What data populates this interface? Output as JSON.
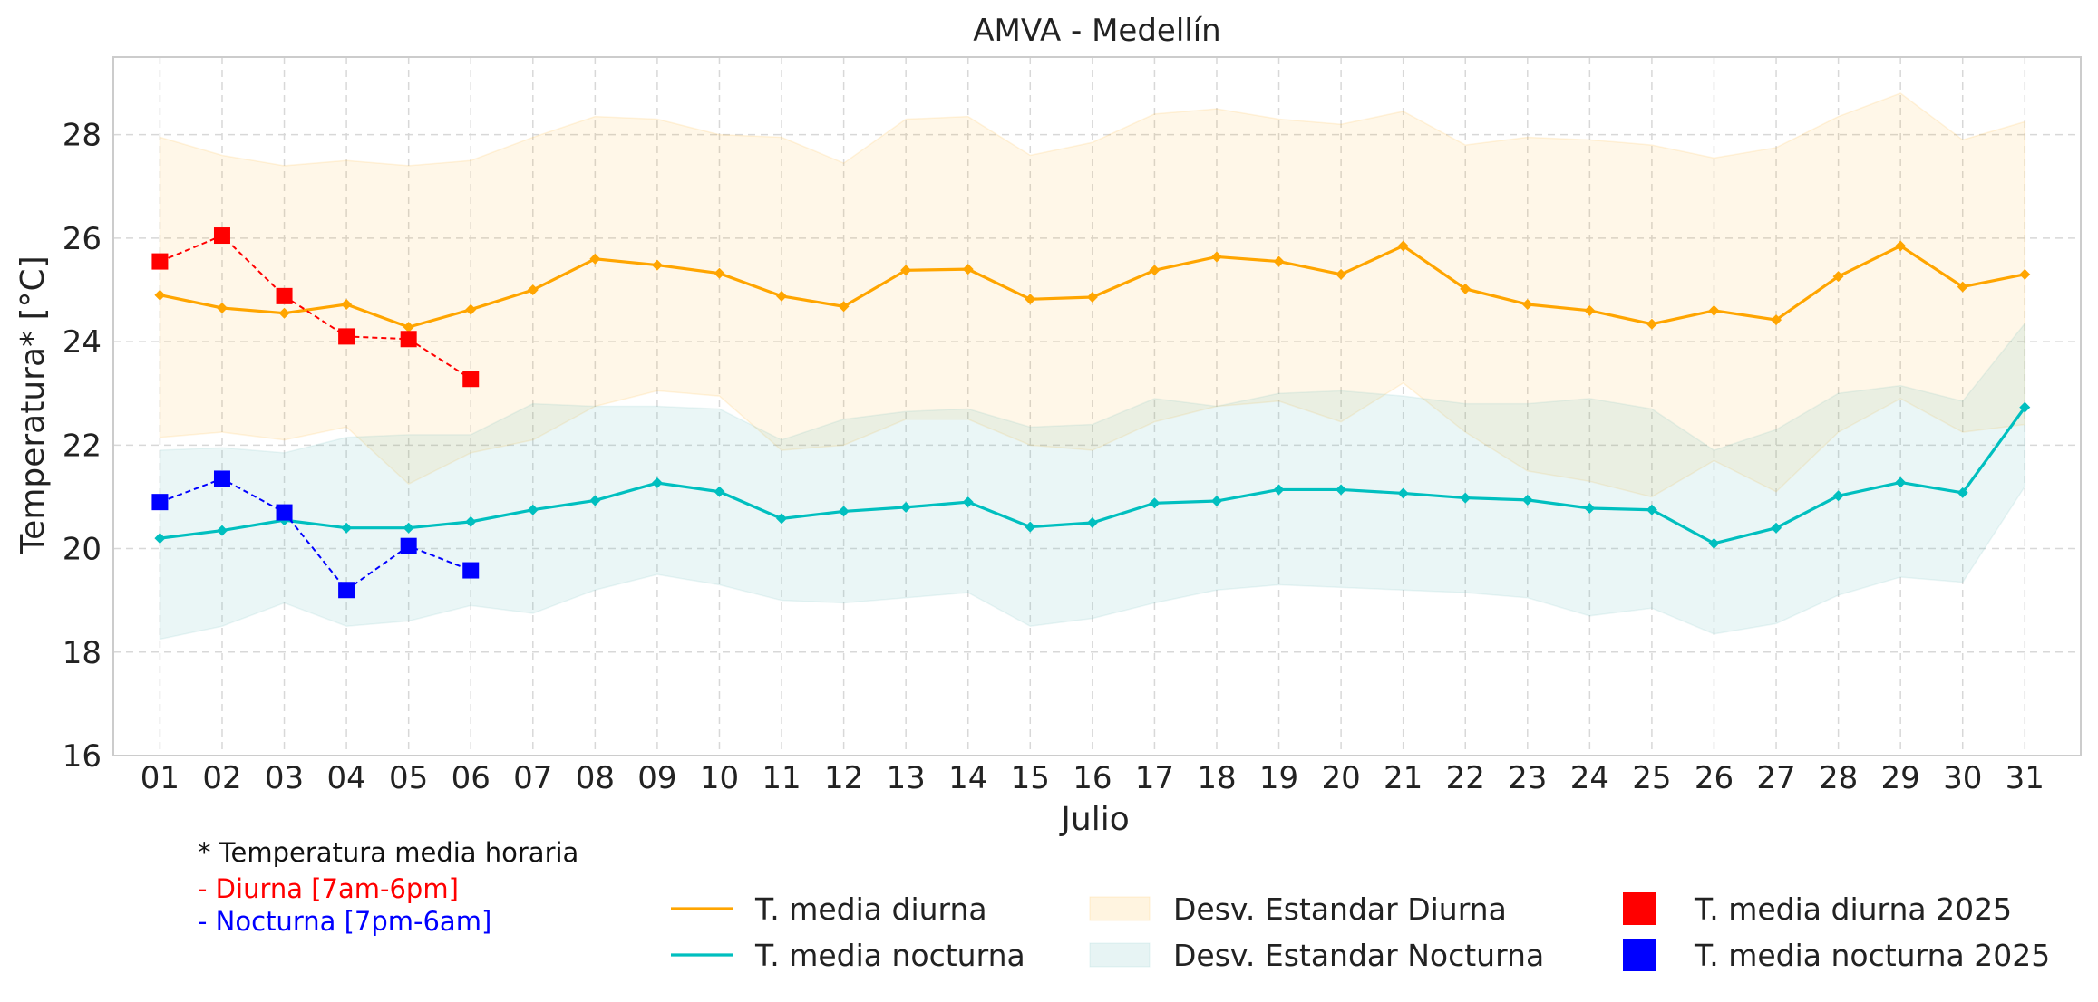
{
  "chart_data": {
    "type": "line",
    "title": "AMVA - Medellín",
    "xlabel": "Julio",
    "ylabel": "Temperatura* [°C]",
    "ylim": [
      16,
      29.5
    ],
    "xlim": [
      0.25,
      31.9
    ],
    "yticks": [
      16,
      18,
      20,
      22,
      24,
      26,
      28
    ],
    "grid": true,
    "categories": [
      "01",
      "02",
      "03",
      "04",
      "05",
      "06",
      "07",
      "08",
      "09",
      "10",
      "11",
      "12",
      "13",
      "14",
      "15",
      "16",
      "17",
      "18",
      "19",
      "20",
      "21",
      "22",
      "23",
      "24",
      "25",
      "26",
      "27",
      "28",
      "29",
      "30",
      "31"
    ],
    "series": [
      {
        "name": "T. media diurna",
        "color": "#ffa500",
        "values": [
          24.9,
          24.65,
          24.55,
          24.72,
          24.28,
          24.62,
          25.0,
          25.6,
          25.48,
          25.32,
          24.88,
          24.68,
          25.38,
          25.4,
          24.82,
          24.86,
          25.38,
          25.64,
          25.55,
          25.3,
          25.85,
          25.02,
          24.72,
          24.6,
          24.34,
          24.6,
          24.42,
          25.26,
          25.85,
          25.06,
          25.3
        ]
      },
      {
        "name": "T. media nocturna",
        "color": "#00bfbf",
        "values": [
          20.2,
          20.35,
          20.55,
          20.4,
          20.4,
          20.52,
          20.75,
          20.93,
          21.27,
          21.1,
          20.58,
          20.72,
          20.8,
          20.9,
          20.42,
          20.5,
          20.88,
          20.92,
          21.14,
          21.14,
          21.07,
          20.98,
          20.94,
          20.78,
          20.75,
          20.1,
          20.4,
          21.02,
          21.28,
          21.08,
          22.73
        ]
      }
    ],
    "bands": [
      {
        "name": "Desv. Estandar Diurna",
        "color": "#ffa500",
        "opacity": 0.09,
        "upper": [
          27.95,
          27.6,
          27.4,
          27.5,
          27.4,
          27.5,
          27.95,
          28.35,
          28.3,
          28.0,
          27.95,
          27.45,
          28.3,
          28.35,
          27.6,
          27.85,
          28.4,
          28.5,
          28.3,
          28.2,
          28.45,
          27.8,
          27.95,
          27.9,
          27.8,
          27.55,
          27.75,
          28.35,
          28.8,
          27.9,
          28.25
        ],
        "lower": [
          22.15,
          22.25,
          22.1,
          22.35,
          21.25,
          21.85,
          22.1,
          22.75,
          23.05,
          22.95,
          21.9,
          22.0,
          22.5,
          22.5,
          22.0,
          21.9,
          22.45,
          22.75,
          22.85,
          22.45,
          23.2,
          22.25,
          21.5,
          21.3,
          21.0,
          21.7,
          21.1,
          22.25,
          22.9,
          22.25,
          22.4
        ]
      },
      {
        "name": "Desv. Estandar Nocturna",
        "color": "#5fb8b8",
        "opacity": 0.13,
        "upper": [
          21.9,
          21.95,
          21.85,
          22.15,
          22.2,
          22.2,
          22.8,
          22.75,
          22.75,
          22.7,
          22.1,
          22.5,
          22.65,
          22.7,
          22.35,
          22.4,
          22.9,
          22.75,
          23.0,
          23.05,
          22.95,
          22.8,
          22.8,
          22.9,
          22.7,
          21.9,
          22.3,
          23.0,
          23.15,
          22.85,
          24.35
        ],
        "lower": [
          18.25,
          18.5,
          18.95,
          18.5,
          18.6,
          18.9,
          18.75,
          19.2,
          19.5,
          19.3,
          19.0,
          18.95,
          19.05,
          19.15,
          18.5,
          18.65,
          18.95,
          19.2,
          19.3,
          19.25,
          19.2,
          19.15,
          19.05,
          18.7,
          18.85,
          18.35,
          18.55,
          19.1,
          19.45,
          19.35,
          21.2
        ]
      }
    ],
    "current_year": [
      {
        "name": "T. media diurna 2025",
        "color": "#ff0000",
        "values": [
          25.55,
          26.05,
          24.88,
          24.1,
          24.05,
          23.28
        ]
      },
      {
        "name": "T. media nocturna 2025",
        "color": "#0000ff",
        "values": [
          20.9,
          21.35,
          20.7,
          19.2,
          20.05,
          19.58
        ]
      }
    ],
    "legend": {
      "placement": "bottom",
      "labels": [
        "T. media diurna",
        "T. media nocturna",
        "Desv. Estandar Diurna",
        "Desv. Estandar Nocturna",
        "T. media diurna 2025",
        "T. media nocturna 2025"
      ]
    }
  },
  "notes": {
    "title": "* Temperatura media horaria",
    "day": "- Diurna [7am-6pm]",
    "night": "- Nocturna [7pm-6am]"
  }
}
